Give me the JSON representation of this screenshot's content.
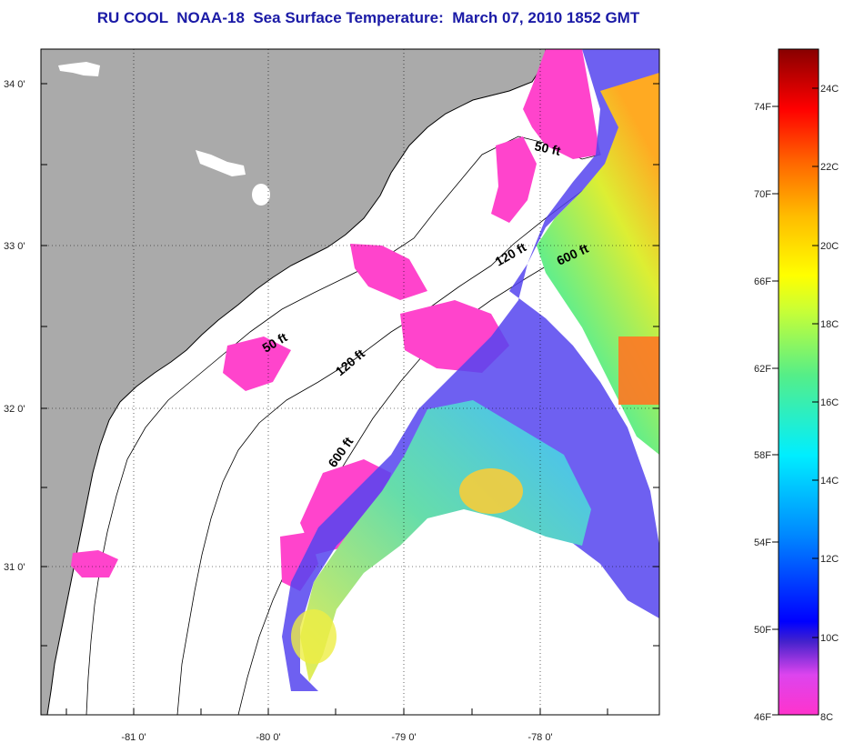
{
  "title": "RU COOL  NOAA-18  Sea Surface Temperature:  March 07, 2010 1852 GMT",
  "axes": {
    "lat_labels": [
      "34 0'",
      "33 0'",
      "32 0'",
      "31 0'"
    ],
    "lon_labels": [
      "-81 0'",
      "-80 0'",
      "-79 0'",
      "-78 0'"
    ]
  },
  "depth_contours": {
    "labels_50": [
      "50 ft",
      "50 ft"
    ],
    "labels_120": [
      "120 ft",
      "120 ft"
    ],
    "labels_600": [
      "600 ft",
      "600 ft"
    ]
  },
  "colorbar": {
    "f_labels": [
      "74F",
      "70F",
      "66F",
      "62F",
      "58F",
      "54F",
      "50F",
      "46F"
    ],
    "c_labels": [
      "24C",
      "22C",
      "20C",
      "18C",
      "16C",
      "14C",
      "12C",
      "10C",
      "8C"
    ]
  },
  "colors": {
    "land": "#aaaaaa",
    "no_data": "#ffffff",
    "title": "#1a1aa6"
  }
}
